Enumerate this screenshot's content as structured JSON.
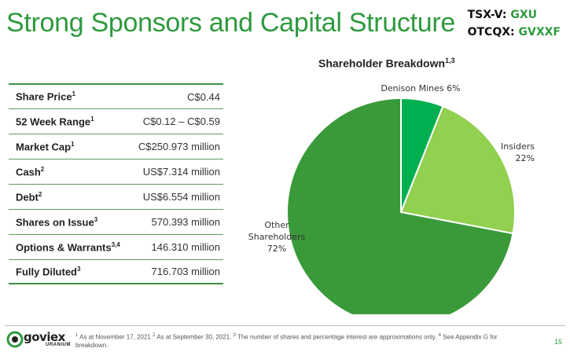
{
  "header": {
    "title": "Strong Sponsors and Capital Structure",
    "ticker1_label": "TSX-V:",
    "ticker1_value": "GXU",
    "ticker2_label": "OTCQX:",
    "ticker2_value": "GVXXF"
  },
  "table": {
    "rows": [
      {
        "label": "Share Price",
        "note": "1",
        "value": "C$0.44"
      },
      {
        "label": "52 Week Range",
        "note": "1",
        "value": "C$0.12 – C$0.59"
      },
      {
        "label": "Market Cap",
        "note": "1",
        "value": "C$250.973 million"
      },
      {
        "label": "Cash",
        "note": "2",
        "value": "US$7.314 million"
      },
      {
        "label": "Debt",
        "note": "2",
        "value": "US$6.554 million"
      },
      {
        "label": "Shares on Issue",
        "note": "3",
        "value": "570.393 million"
      },
      {
        "label": "Options & Warrants",
        "note": "3,4",
        "value": "146.310 million"
      },
      {
        "label": "Fully Diluted",
        "note": "3",
        "value": "716.703 million"
      }
    ]
  },
  "chart_data": {
    "type": "pie",
    "title": "Shareholder Breakdown",
    "title_note": "1,3",
    "slices": [
      {
        "label": "Denison Mines",
        "value": 6,
        "display": "6%",
        "color": "#00b050"
      },
      {
        "label": "Insiders",
        "value": 22,
        "display": "22%",
        "color": "#92d050"
      },
      {
        "label": "Other Shareholders",
        "value": 72,
        "display": "72%",
        "color": "#3a9a3a"
      }
    ]
  },
  "footer": {
    "logo_word": "goviex",
    "logo_sub": "URANIUM",
    "footnote_parts": [
      {
        "sup": "1",
        "text": " As at November 17, 2021 "
      },
      {
        "sup": "2",
        "text": " As at September 30, 2021. "
      },
      {
        "sup": "3",
        "text": " The number of shares and percentage interest are approximations only. "
      },
      {
        "sup": "4",
        "text": " See Appendix G for breakdown."
      }
    ],
    "page_number": "15"
  },
  "colors": {
    "brand_green": "#2e9a3e",
    "rule_green": "#5a9e5a"
  }
}
